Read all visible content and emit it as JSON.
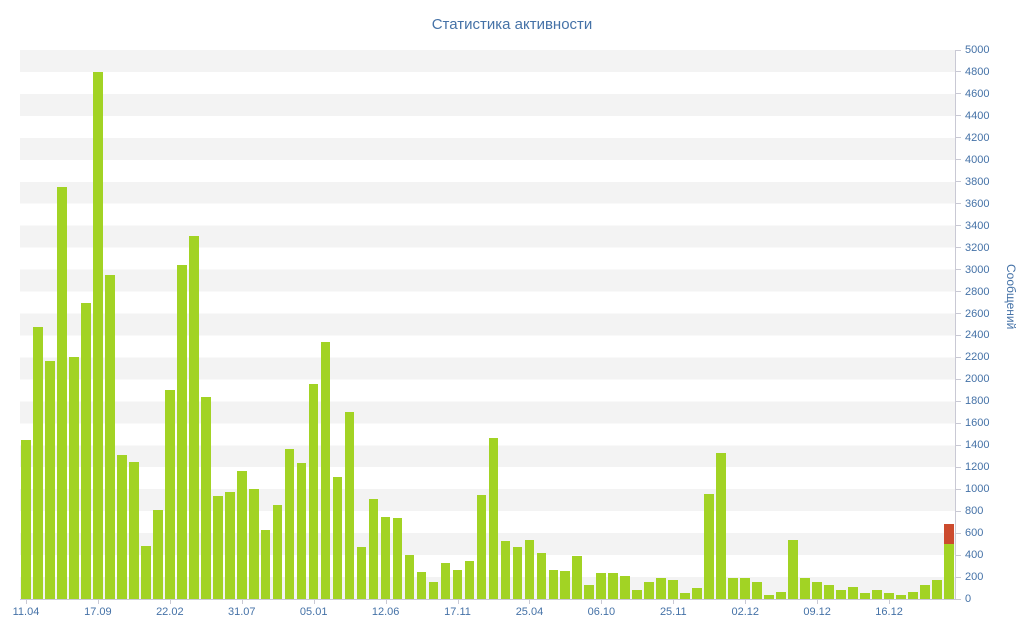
{
  "title": "Статистика активности",
  "colors": {
    "bar": "#a2d324",
    "bar_highlight": "#cc4b2e",
    "text": "#4572a7",
    "stripe": "#f3f3f3",
    "axis_line": "#c9c9d4",
    "background": "#ffffff"
  },
  "chart_data": {
    "type": "bar",
    "title": "Статистика активности",
    "xlabel": "",
    "ylabel": "Сообщений",
    "ylim": [
      0,
      5000
    ],
    "grid": "striped-horizontal-bands",
    "legend_position": "none",
    "y_ticks": [
      0,
      200,
      400,
      600,
      800,
      1000,
      1200,
      1400,
      1600,
      1800,
      2000,
      2200,
      2400,
      2600,
      2800,
      3000,
      3200,
      3400,
      3600,
      3800,
      4000,
      4200,
      4400,
      4600,
      4800,
      5000
    ],
    "x_tick_labels": [
      "11.04",
      "17.09",
      "22.02",
      "31.07",
      "05.01",
      "12.06",
      "17.11",
      "25.04",
      "06.10",
      "25.11",
      "02.12",
      "09.12",
      "16.12"
    ],
    "label_every_n_bars": 6,
    "series": [
      {
        "name": "Сообщений",
        "color": "#a2d324",
        "values": [
          1450,
          2480,
          2170,
          3750,
          2200,
          2700,
          4800,
          2950,
          1310,
          1250,
          480,
          810,
          1900,
          3040,
          3310,
          1840,
          940,
          975,
          1170,
          1000,
          630,
          855,
          1365,
          1240,
          1955,
          2340,
          1110,
          1700,
          470,
          910,
          745,
          735,
          400,
          245,
          155,
          330,
          265,
          350,
          945,
          1470,
          525,
          470,
          535,
          420,
          265,
          255,
          390,
          125,
          235,
          235,
          210,
          80,
          155,
          190,
          175,
          55,
          100,
          955,
          1330,
          190,
          190,
          155,
          35,
          65,
          535,
          190,
          155,
          125,
          80,
          110,
          55,
          80,
          55,
          35,
          65,
          125,
          175,
          500
        ]
      }
    ],
    "overlay": {
      "note": "red stacked segment on top of last bar",
      "index": 77,
      "value": 180,
      "color": "#cc4b2e"
    }
  }
}
